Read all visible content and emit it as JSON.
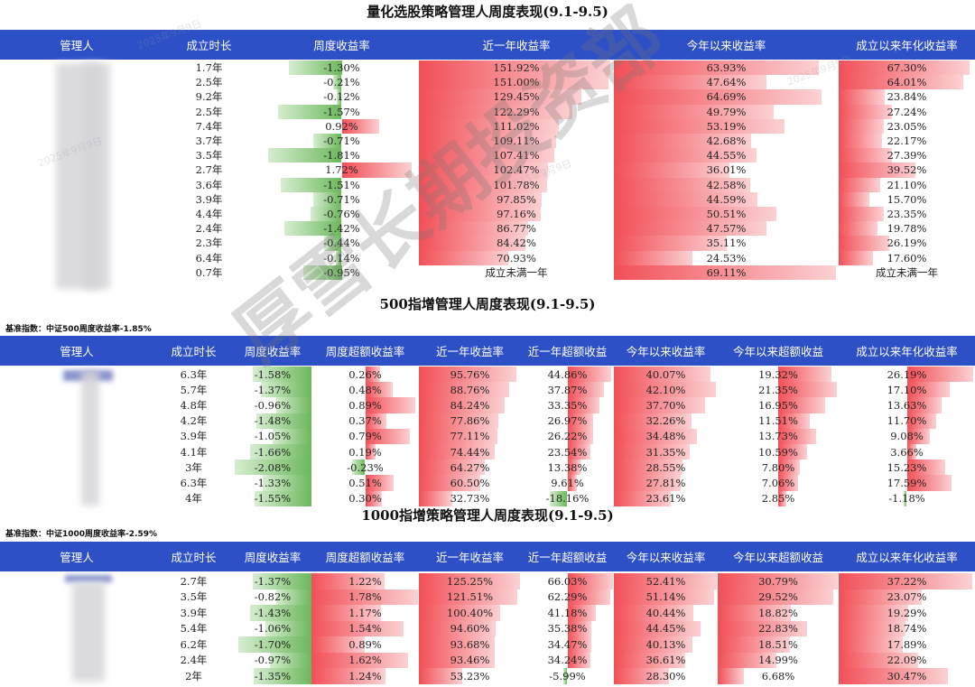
{
  "colors": {
    "header_bg": "#2d50c6",
    "pos_bar": "#f24f57",
    "neg_bar": "#6cb85c"
  },
  "watermark": {
    "big": "厚雪长期投资部",
    "date_text": "2025年9月9日"
  },
  "sections": [
    {
      "title": "量化选股策略管理人周度表现(9.1-9.5)",
      "benchmark": "",
      "columns": [
        "管理人",
        "成立时长",
        "周度收益率",
        "近一年收益率",
        "今年以来收益率",
        "成立以来年化收益率"
      ],
      "rows": [
        [
          "",
          "1.7年",
          "-1.30%",
          "151.92%",
          "63.93%",
          "67.30%"
        ],
        [
          "",
          "2.5年",
          "-0.21%",
          "151.00%",
          "47.64%",
          "64.01%"
        ],
        [
          "",
          "9.2年",
          "-0.12%",
          "129.45%",
          "64.69%",
          "23.84%"
        ],
        [
          "",
          "2.5年",
          "-1.57%",
          "122.29%",
          "49.79%",
          "27.24%"
        ],
        [
          "",
          "7.4年",
          "0.92%",
          "111.02%",
          "53.19%",
          "23.05%"
        ],
        [
          "",
          "3.7年",
          "-0.71%",
          "109.11%",
          "42.68%",
          "22.17%"
        ],
        [
          "",
          "3.5年",
          "-1.81%",
          "107.41%",
          "44.55%",
          "27.39%"
        ],
        [
          "",
          "2.7年",
          "1.72%",
          "102.47%",
          "36.01%",
          "39.52%"
        ],
        [
          "",
          "3.6年",
          "-1.51%",
          "101.78%",
          "42.58%",
          "21.10%"
        ],
        [
          "",
          "3.9年",
          "-0.71%",
          "97.85%",
          "44.59%",
          "15.70%"
        ],
        [
          "",
          "4.4年",
          "-0.76%",
          "97.16%",
          "50.51%",
          "23.35%"
        ],
        [
          "",
          "2.4年",
          "-1.42%",
          "86.77%",
          "47.57%",
          "19.78%"
        ],
        [
          "",
          "2.3年",
          "-0.44%",
          "84.42%",
          "35.11%",
          "26.19%"
        ],
        [
          "",
          "6.4年",
          "-0.14%",
          "70.93%",
          "24.53%",
          "17.60%"
        ],
        [
          "",
          "0.7年",
          "-0.95%",
          "成立未满一年",
          "69.11%",
          "成立未满一年"
        ]
      ]
    },
    {
      "title": "500指增管理人周度表现(9.1-9.5)",
      "benchmark": "基准指数：中证500周度收益率-1.85%",
      "columns": [
        "管理人",
        "成立时长",
        "周度收益率",
        "周度超额收益率",
        "近一年收益率",
        "近一年超额收益",
        "今年以来收益率",
        "今年以来超额收益",
        "成立以来年化收益率"
      ],
      "rows": [
        [
          "",
          "6.3年",
          "-1.58%",
          "0.26%",
          "95.76%",
          "44.86%",
          "40.07%",
          "19.32%",
          "26.19%"
        ],
        [
          "",
          "5.7年",
          "-1.37%",
          "0.48%",
          "88.76%",
          "37.87%",
          "42.10%",
          "21.35%",
          "17.10%"
        ],
        [
          "",
          "4.8年",
          "-0.96%",
          "0.89%",
          "84.24%",
          "33.35%",
          "37.70%",
          "16.95%",
          "13.63%"
        ],
        [
          "",
          "4.2年",
          "-1.48%",
          "0.37%",
          "77.86%",
          "26.97%",
          "32.26%",
          "11.51%",
          "11.70%"
        ],
        [
          "",
          "3.9年",
          "-1.05%",
          "0.79%",
          "77.11%",
          "26.22%",
          "34.48%",
          "13.73%",
          "9.08%"
        ],
        [
          "",
          "4.1年",
          "-1.66%",
          "0.19%",
          "74.44%",
          "23.54%",
          "31.35%",
          "10.59%",
          "3.66%"
        ],
        [
          "",
          "3年",
          "-2.08%",
          "-0.23%",
          "64.27%",
          "13.38%",
          "28.55%",
          "7.80%",
          "15.23%"
        ],
        [
          "",
          "6.3年",
          "-1.33%",
          "0.51%",
          "60.50%",
          "9.61%",
          "27.81%",
          "7.06%",
          "17.59%"
        ],
        [
          "",
          "4年",
          "-1.55%",
          "0.30%",
          "32.73%",
          "-18.16%",
          "23.61%",
          "2.85%",
          "-1.18%"
        ]
      ]
    },
    {
      "title": "1000指增策略管理人周度表现(9.1-9.5)",
      "benchmark": "基准指数：中证1000周度收益率-2.59%",
      "columns": [
        "管理人",
        "成立时长",
        "周度收益率",
        "周度超额收益率",
        "近一年收益率",
        "近一年超额收益",
        "今年以来收益率",
        "今年以来超额收益",
        "成立以来年化收益率"
      ],
      "rows": [
        [
          "",
          "2.7年",
          "-1.37%",
          "1.22%",
          "125.25%",
          "66.03%",
          "52.41%",
          "30.79%",
          "37.22%"
        ],
        [
          "",
          "3.5年",
          "-0.82%",
          "1.78%",
          "121.51%",
          "62.29%",
          "51.14%",
          "29.52%",
          "23.07%"
        ],
        [
          "",
          "3.9年",
          "-1.43%",
          "1.17%",
          "100.40%",
          "41.18%",
          "40.44%",
          "18.82%",
          "19.29%"
        ],
        [
          "",
          "5.4年",
          "-1.06%",
          "1.54%",
          "94.60%",
          "35.38%",
          "44.45%",
          "22.83%",
          "18.74%"
        ],
        [
          "",
          "6.2年",
          "-1.70%",
          "0.89%",
          "93.68%",
          "34.47%",
          "40.13%",
          "18.51%",
          "17.89%"
        ],
        [
          "",
          "2.4年",
          "-0.97%",
          "1.62%",
          "93.46%",
          "34.24%",
          "36.61%",
          "14.99%",
          "22.09%"
        ],
        [
          "",
          "2年",
          "-1.35%",
          "1.24%",
          "53.23%",
          "-5.99%",
          "28.30%",
          "6.68%",
          "30.47%"
        ]
      ]
    }
  ]
}
